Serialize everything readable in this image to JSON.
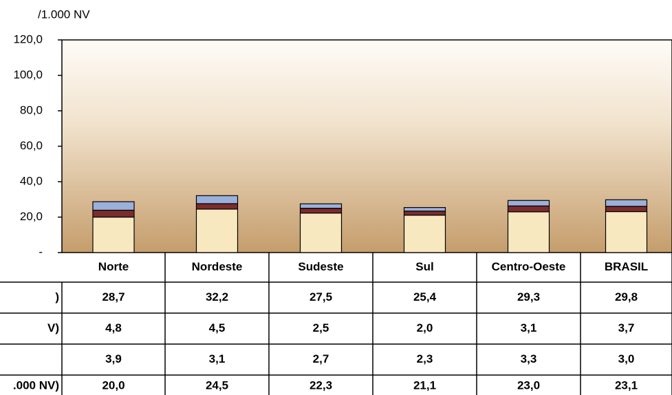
{
  "chart_data": {
    "type": "bar",
    "stacked": true,
    "y_unit": "/1.000 NV",
    "categories": [
      "Norte",
      "Nordeste",
      "Sudeste",
      "Sul",
      "Centro-Oeste",
      "BRASIL"
    ],
    "series": [
      {
        "name": ".000 NV)",
        "color": "#f8e8c0",
        "values": [
          20.0,
          24.5,
          22.3,
          21.1,
          23.0,
          23.1
        ],
        "value_labels": [
          "20,0",
          "24,5",
          "22,3",
          "21,1",
          "23,0",
          "23,1"
        ]
      },
      {
        "name": null,
        "color": "#7b2c2c",
        "values": [
          3.9,
          3.1,
          2.7,
          2.3,
          3.3,
          3.0
        ],
        "value_labels": [
          "3,9",
          "3,1",
          "2,7",
          "2,3",
          "3,3",
          "3,0"
        ]
      },
      {
        "name": "V)",
        "color": "#9bb0da",
        "values": [
          4.8,
          4.5,
          2.5,
          2.0,
          3.1,
          3.7
        ],
        "value_labels": [
          "4,8",
          "4,5",
          "2,5",
          "2,0",
          "3,1",
          "3,7"
        ]
      }
    ],
    "totals": {
      "name": ")",
      "values": [
        28.7,
        32.2,
        27.5,
        25.4,
        29.3,
        29.8
      ],
      "value_labels": [
        "28,7",
        "32,2",
        "27,5",
        "25,4",
        "29,3",
        "29,8"
      ]
    },
    "ylim": [
      0,
      120
    ],
    "yticks": [
      {
        "value": 0,
        "label": "-"
      },
      {
        "value": 20,
        "label": "20,0"
      },
      {
        "value": 40,
        "label": "40,0"
      },
      {
        "value": 60,
        "label": "60,0"
      },
      {
        "value": 80,
        "label": "80,0"
      },
      {
        "value": 100,
        "label": "100,0"
      },
      {
        "value": 120,
        "label": "120,0"
      }
    ]
  }
}
